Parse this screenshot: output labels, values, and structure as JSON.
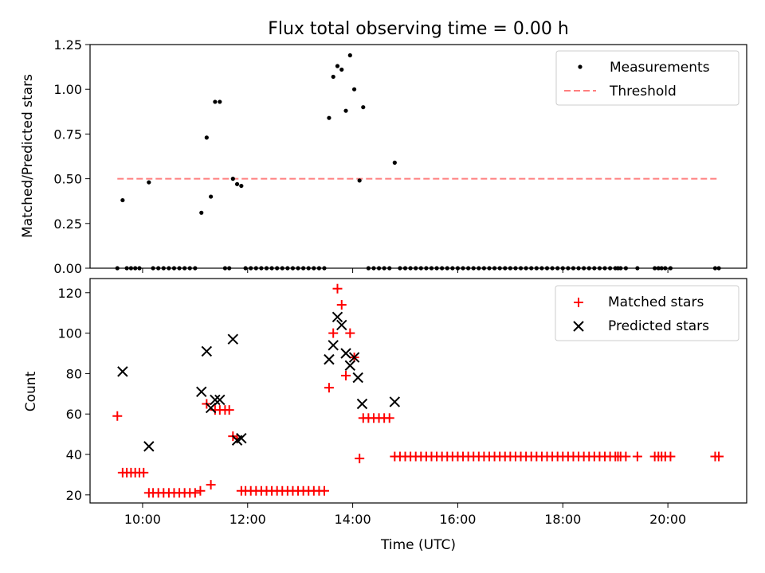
{
  "chart_data": [
    {
      "type": "scatter",
      "title": "Flux total observing time = 0.00 h",
      "xlabel": "",
      "ylabel": "Matched/Predicted stars",
      "xlim": [
        9.0,
        21.5
      ],
      "ylim": [
        0.0,
        1.25
      ],
      "yticks": [
        0.0,
        0.25,
        0.5,
        0.75,
        1.0,
        1.25
      ],
      "ytick_labels": [
        "0.00",
        "0.25",
        "0.50",
        "0.75",
        "1.00",
        "1.25"
      ],
      "legend_position": "upper right",
      "series": [
        {
          "name": "Measurements",
          "marker": "dot",
          "color": "#000000",
          "points": [
            [
              9.52,
              0.0
            ],
            [
              9.62,
              0.38
            ],
            [
              9.7,
              0.0
            ],
            [
              9.78,
              0.0
            ],
            [
              9.86,
              0.0
            ],
            [
              9.94,
              0.0
            ],
            [
              10.12,
              0.48
            ],
            [
              10.2,
              0.0
            ],
            [
              10.3,
              0.0
            ],
            [
              10.4,
              0.0
            ],
            [
              10.5,
              0.0
            ],
            [
              10.6,
              0.0
            ],
            [
              10.7,
              0.0
            ],
            [
              10.8,
              0.0
            ],
            [
              10.9,
              0.0
            ],
            [
              11.0,
              0.0
            ],
            [
              11.12,
              0.31
            ],
            [
              11.22,
              0.73
            ],
            [
              11.3,
              0.4
            ],
            [
              11.38,
              0.93
            ],
            [
              11.47,
              0.93
            ],
            [
              11.57,
              0.0
            ],
            [
              11.65,
              0.0
            ],
            [
              11.72,
              0.5
            ],
            [
              11.8,
              0.47
            ],
            [
              11.88,
              0.46
            ],
            [
              11.96,
              0.0
            ],
            [
              12.06,
              0.0
            ],
            [
              12.16,
              0.0
            ],
            [
              12.26,
              0.0
            ],
            [
              12.36,
              0.0
            ],
            [
              12.46,
              0.0
            ],
            [
              12.56,
              0.0
            ],
            [
              12.66,
              0.0
            ],
            [
              12.76,
              0.0
            ],
            [
              12.86,
              0.0
            ],
            [
              12.96,
              0.0
            ],
            [
              13.06,
              0.0
            ],
            [
              13.16,
              0.0
            ],
            [
              13.26,
              0.0
            ],
            [
              13.36,
              0.0
            ],
            [
              13.46,
              0.0
            ],
            [
              13.55,
              0.84
            ],
            [
              13.63,
              1.07
            ],
            [
              13.71,
              1.13
            ],
            [
              13.79,
              1.11
            ],
            [
              13.87,
              0.88
            ],
            [
              13.95,
              1.19
            ],
            [
              14.03,
              1.0
            ],
            [
              14.13,
              0.49
            ],
            [
              14.2,
              0.9
            ],
            [
              14.3,
              0.0
            ],
            [
              14.4,
              0.0
            ],
            [
              14.5,
              0.0
            ],
            [
              14.6,
              0.0
            ],
            [
              14.7,
              0.0
            ],
            [
              14.8,
              0.59
            ],
            [
              14.9,
              0.0
            ],
            [
              15.0,
              0.0
            ],
            [
              15.1,
              0.0
            ],
            [
              15.2,
              0.0
            ],
            [
              15.3,
              0.0
            ],
            [
              15.4,
              0.0
            ],
            [
              15.5,
              0.0
            ],
            [
              15.6,
              0.0
            ],
            [
              15.7,
              0.0
            ],
            [
              15.8,
              0.0
            ],
            [
              15.9,
              0.0
            ],
            [
              16.0,
              0.0
            ],
            [
              16.1,
              0.0
            ],
            [
              16.2,
              0.0
            ],
            [
              16.3,
              0.0
            ],
            [
              16.4,
              0.0
            ],
            [
              16.5,
              0.0
            ],
            [
              16.6,
              0.0
            ],
            [
              16.7,
              0.0
            ],
            [
              16.8,
              0.0
            ],
            [
              16.9,
              0.0
            ],
            [
              17.0,
              0.0
            ],
            [
              17.1,
              0.0
            ],
            [
              17.2,
              0.0
            ],
            [
              17.3,
              0.0
            ],
            [
              17.4,
              0.0
            ],
            [
              17.5,
              0.0
            ],
            [
              17.6,
              0.0
            ],
            [
              17.7,
              0.0
            ],
            [
              17.8,
              0.0
            ],
            [
              17.9,
              0.0
            ],
            [
              18.0,
              0.0
            ],
            [
              18.1,
              0.0
            ],
            [
              18.2,
              0.0
            ],
            [
              18.3,
              0.0
            ],
            [
              18.4,
              0.0
            ],
            [
              18.5,
              0.0
            ],
            [
              18.6,
              0.0
            ],
            [
              18.7,
              0.0
            ],
            [
              18.8,
              0.0
            ],
            [
              18.9,
              0.0
            ],
            [
              19.0,
              0.0
            ],
            [
              19.05,
              0.0
            ],
            [
              19.1,
              0.0
            ],
            [
              19.2,
              0.0
            ],
            [
              19.42,
              0.0
            ],
            [
              19.75,
              0.0
            ],
            [
              19.82,
              0.0
            ],
            [
              19.88,
              0.0
            ],
            [
              19.95,
              0.0
            ],
            [
              20.05,
              0.0
            ],
            [
              20.9,
              0.0
            ],
            [
              20.97,
              0.0
            ]
          ]
        },
        {
          "name": "Threshold",
          "marker": "dashed-line",
          "color": "#ff7f7f",
          "points": [
            [
              9.52,
              0.5
            ],
            [
              20.97,
              0.5
            ]
          ]
        }
      ]
    },
    {
      "type": "scatter",
      "title": "",
      "xlabel": "Time (UTC)",
      "ylabel": "Count",
      "xlim": [
        9.0,
        21.5
      ],
      "ylim": [
        16.0,
        127.0
      ],
      "yticks": [
        20,
        40,
        60,
        80,
        100,
        120
      ],
      "ytick_labels": [
        "20",
        "40",
        "60",
        "80",
        "100",
        "120"
      ],
      "xticks": [
        10,
        12,
        14,
        16,
        18,
        20
      ],
      "xtick_labels": [
        "10:00",
        "12:00",
        "14:00",
        "16:00",
        "18:00",
        "20:00"
      ],
      "legend_position": "upper right",
      "series": [
        {
          "name": "Matched stars",
          "marker": "plus",
          "color": "#ff0000",
          "points": [
            [
              9.52,
              59
            ],
            [
              9.62,
              31
            ],
            [
              9.7,
              31
            ],
            [
              9.78,
              31
            ],
            [
              9.86,
              31
            ],
            [
              9.94,
              31
            ],
            [
              10.02,
              31
            ],
            [
              10.12,
              21
            ],
            [
              10.2,
              21
            ],
            [
              10.3,
              21
            ],
            [
              10.4,
              21
            ],
            [
              10.5,
              21
            ],
            [
              10.6,
              21
            ],
            [
              10.7,
              21
            ],
            [
              10.8,
              21
            ],
            [
              10.9,
              21
            ],
            [
              11.0,
              21
            ],
            [
              11.1,
              22
            ],
            [
              11.22,
              65
            ],
            [
              11.3,
              25
            ],
            [
              11.38,
              62
            ],
            [
              11.47,
              62
            ],
            [
              11.57,
              62
            ],
            [
              11.65,
              62
            ],
            [
              11.72,
              49
            ],
            [
              11.8,
              48
            ],
            [
              11.88,
              22
            ],
            [
              11.96,
              22
            ],
            [
              12.06,
              22
            ],
            [
              12.16,
              22
            ],
            [
              12.26,
              22
            ],
            [
              12.36,
              22
            ],
            [
              12.46,
              22
            ],
            [
              12.56,
              22
            ],
            [
              12.66,
              22
            ],
            [
              12.76,
              22
            ],
            [
              12.86,
              22
            ],
            [
              12.96,
              22
            ],
            [
              13.06,
              22
            ],
            [
              13.16,
              22
            ],
            [
              13.26,
              22
            ],
            [
              13.36,
              22
            ],
            [
              13.46,
              22
            ],
            [
              13.55,
              73
            ],
            [
              13.63,
              100
            ],
            [
              13.71,
              122
            ],
            [
              13.79,
              114
            ],
            [
              13.87,
              79
            ],
            [
              13.95,
              100
            ],
            [
              14.03,
              88
            ],
            [
              14.13,
              38
            ],
            [
              14.2,
              58
            ],
            [
              14.3,
              58
            ],
            [
              14.4,
              58
            ],
            [
              14.5,
              58
            ],
            [
              14.6,
              58
            ],
            [
              14.7,
              58
            ],
            [
              14.8,
              39
            ],
            [
              14.9,
              39
            ],
            [
              15.0,
              39
            ],
            [
              15.1,
              39
            ],
            [
              15.2,
              39
            ],
            [
              15.3,
              39
            ],
            [
              15.4,
              39
            ],
            [
              15.5,
              39
            ],
            [
              15.6,
              39
            ],
            [
              15.7,
              39
            ],
            [
              15.8,
              39
            ],
            [
              15.9,
              39
            ],
            [
              16.0,
              39
            ],
            [
              16.1,
              39
            ],
            [
              16.2,
              39
            ],
            [
              16.3,
              39
            ],
            [
              16.4,
              39
            ],
            [
              16.5,
              39
            ],
            [
              16.6,
              39
            ],
            [
              16.7,
              39
            ],
            [
              16.8,
              39
            ],
            [
              16.9,
              39
            ],
            [
              17.0,
              39
            ],
            [
              17.1,
              39
            ],
            [
              17.2,
              39
            ],
            [
              17.3,
              39
            ],
            [
              17.4,
              39
            ],
            [
              17.5,
              39
            ],
            [
              17.6,
              39
            ],
            [
              17.7,
              39
            ],
            [
              17.8,
              39
            ],
            [
              17.9,
              39
            ],
            [
              18.0,
              39
            ],
            [
              18.1,
              39
            ],
            [
              18.2,
              39
            ],
            [
              18.3,
              39
            ],
            [
              18.4,
              39
            ],
            [
              18.5,
              39
            ],
            [
              18.6,
              39
            ],
            [
              18.7,
              39
            ],
            [
              18.8,
              39
            ],
            [
              18.9,
              39
            ],
            [
              19.0,
              39
            ],
            [
              19.05,
              39
            ],
            [
              19.1,
              39
            ],
            [
              19.2,
              39
            ],
            [
              19.42,
              39
            ],
            [
              19.75,
              39
            ],
            [
              19.82,
              39
            ],
            [
              19.88,
              39
            ],
            [
              19.95,
              39
            ],
            [
              20.05,
              39
            ],
            [
              20.9,
              39
            ],
            [
              20.97,
              39
            ]
          ]
        },
        {
          "name": "Predicted stars",
          "marker": "x",
          "color": "#000000",
          "points": [
            [
              9.62,
              81
            ],
            [
              10.12,
              44
            ],
            [
              11.12,
              71
            ],
            [
              11.22,
              91
            ],
            [
              11.3,
              63
            ],
            [
              11.38,
              67
            ],
            [
              11.47,
              67
            ],
            [
              11.72,
              97
            ],
            [
              11.8,
              47
            ],
            [
              11.88,
              48
            ],
            [
              13.55,
              87
            ],
            [
              13.63,
              94
            ],
            [
              13.71,
              108
            ],
            [
              13.79,
              104
            ],
            [
              13.87,
              90
            ],
            [
              13.95,
              84
            ],
            [
              14.03,
              88
            ],
            [
              14.1,
              78
            ],
            [
              14.18,
              65
            ],
            [
              14.8,
              66
            ]
          ]
        }
      ]
    }
  ]
}
